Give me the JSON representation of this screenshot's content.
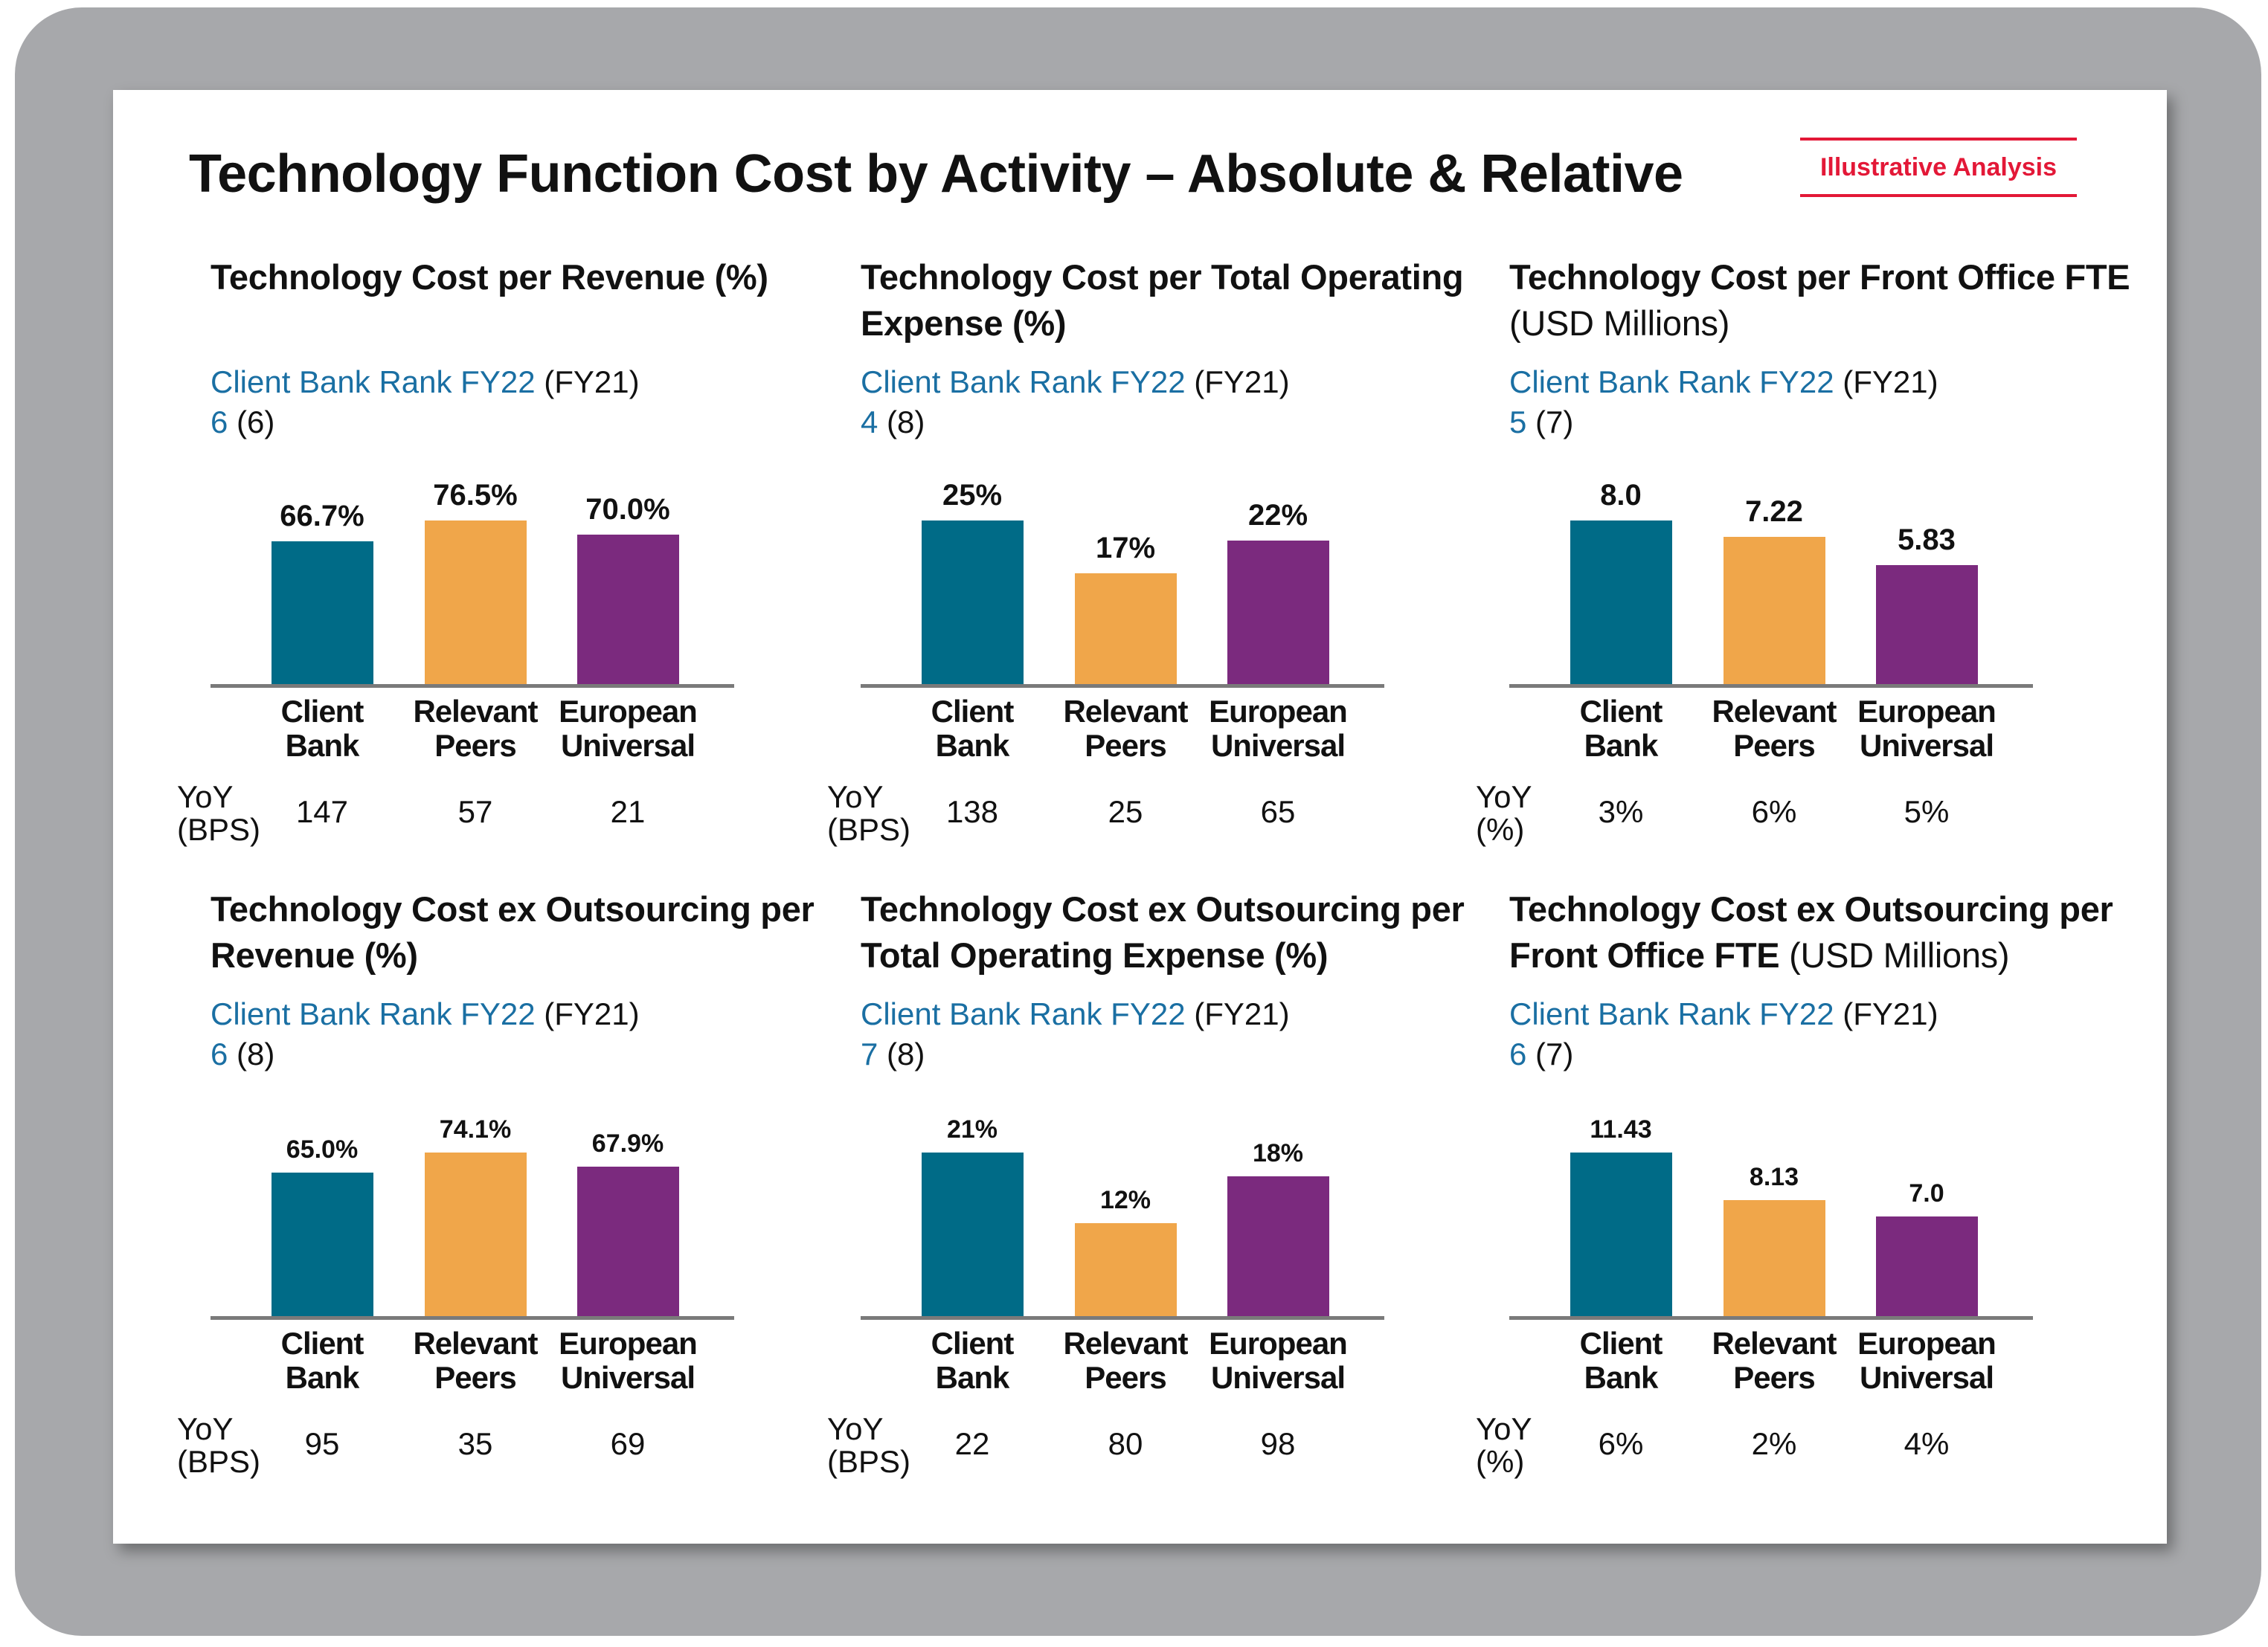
{
  "title": "Technology Function Cost by Activity – Absolute & Relative",
  "badge": "Illustrative Analysis",
  "colors": {
    "client_bank": "#006b87",
    "relevant_peers": "#f0a64a",
    "european_universal": "#7b2a7e",
    "badge": "#e31837",
    "rank": "#1a6fa3"
  },
  "chart_data": [
    {
      "type": "bar",
      "title": "Technology Cost per Revenue",
      "title_suffix": "(%)",
      "rank_label": "Client Bank Rank FY22",
      "rank_prev_label": "(FY21)",
      "rank": "6",
      "rank_prev": "(6)",
      "categories": [
        "Client Bank",
        "Relevant Peers",
        "European Universal"
      ],
      "category_lines": [
        [
          "Client",
          "Bank"
        ],
        [
          "Relevant",
          "Peers"
        ],
        [
          "European",
          "Universal"
        ]
      ],
      "values": [
        66.7,
        76.5,
        70.0
      ],
      "labels": [
        "66.7%",
        "76.5%",
        "70.0%"
      ],
      "yoy_label": [
        "YoY",
        "(BPS)"
      ],
      "yoy": [
        "147",
        "57",
        "21"
      ]
    },
    {
      "type": "bar",
      "title": "Technology Cost per Total Operating Expense",
      "title_suffix": "(%)",
      "rank_label": "Client Bank Rank FY22",
      "rank_prev_label": "(FY21)",
      "rank": "4",
      "rank_prev": "(8)",
      "categories": [
        "Client Bank",
        "Relevant Peers",
        "European Universal"
      ],
      "category_lines": [
        [
          "Client",
          "Bank"
        ],
        [
          "Relevant",
          "Peers"
        ],
        [
          "European",
          "Universal"
        ]
      ],
      "values": [
        25,
        17,
        22
      ],
      "labels": [
        "25%",
        "17%",
        "22%"
      ],
      "yoy_label": [
        "YoY",
        "(BPS)"
      ],
      "yoy": [
        "138",
        "25",
        "65"
      ]
    },
    {
      "type": "bar",
      "title": "Technology Cost per Front Office FTE",
      "title_suffix": "(USD Millions)",
      "rank_label": "Client Bank Rank FY22",
      "rank_prev_label": "(FY21)",
      "rank": "5",
      "rank_prev": "(7)",
      "categories": [
        "Client Bank",
        "Relevant Peers",
        "European Universal"
      ],
      "category_lines": [
        [
          "Client",
          "Bank"
        ],
        [
          "Relevant",
          "Peers"
        ],
        [
          "European",
          "Universal"
        ]
      ],
      "values": [
        8.0,
        7.22,
        5.83
      ],
      "labels": [
        "8.0",
        "7.22",
        "5.83"
      ],
      "yoy_label": [
        "YoY",
        "(%)"
      ],
      "yoy": [
        "3%",
        "6%",
        "5%"
      ]
    },
    {
      "type": "bar",
      "title": "Technology Cost ex Outsourcing per Revenue",
      "title_suffix": "(%)",
      "rank_label": "Client Bank Rank FY22",
      "rank_prev_label": "(FY21)",
      "rank": "6",
      "rank_prev": "(8)",
      "categories": [
        "Client Bank",
        "Relevant Peers",
        "European Universal"
      ],
      "category_lines": [
        [
          "Client",
          "Bank"
        ],
        [
          "Relevant",
          "Peers"
        ],
        [
          "European",
          "Universal"
        ]
      ],
      "values": [
        65.0,
        74.1,
        67.9
      ],
      "labels": [
        "65.0%",
        "74.1%",
        "67.9%"
      ],
      "yoy_label": [
        "YoY",
        "(BPS)"
      ],
      "yoy": [
        "95",
        "35",
        "69"
      ]
    },
    {
      "type": "bar",
      "title": "Technology Cost ex Outsourcing per Total Operating Expense",
      "title_suffix": "(%)",
      "rank_label": "Client Bank Rank FY22",
      "rank_prev_label": "(FY21)",
      "rank": "7",
      "rank_prev": "(8)",
      "categories": [
        "Client Bank",
        "Relevant Peers",
        "European Universal"
      ],
      "category_lines": [
        [
          "Client",
          "Bank"
        ],
        [
          "Relevant",
          "Peers"
        ],
        [
          "European",
          "Universal"
        ]
      ],
      "values": [
        21,
        12,
        18
      ],
      "labels": [
        "21%",
        "12%",
        "18%"
      ],
      "yoy_label": [
        "YoY",
        "(BPS)"
      ],
      "yoy": [
        "22",
        "80",
        "98"
      ]
    },
    {
      "type": "bar",
      "title": "Technology Cost ex Outsourcing per Front Office FTE",
      "title_suffix": "(USD Millions)",
      "rank_label": "Client Bank Rank FY22",
      "rank_prev_label": "(FY21)",
      "rank": "6",
      "rank_prev": "(7)",
      "categories": [
        "Client Bank",
        "Relevant Peers",
        "European Universal"
      ],
      "category_lines": [
        [
          "Client",
          "Bank"
        ],
        [
          "Relevant",
          "Peers"
        ],
        [
          "European",
          "Universal"
        ]
      ],
      "values": [
        11.43,
        8.13,
        7.0
      ],
      "labels": [
        "11.43",
        "8.13",
        "7.0"
      ],
      "yoy_label": [
        "YoY",
        "(%)"
      ],
      "yoy": [
        "6%",
        "2%",
        "4%"
      ]
    }
  ]
}
